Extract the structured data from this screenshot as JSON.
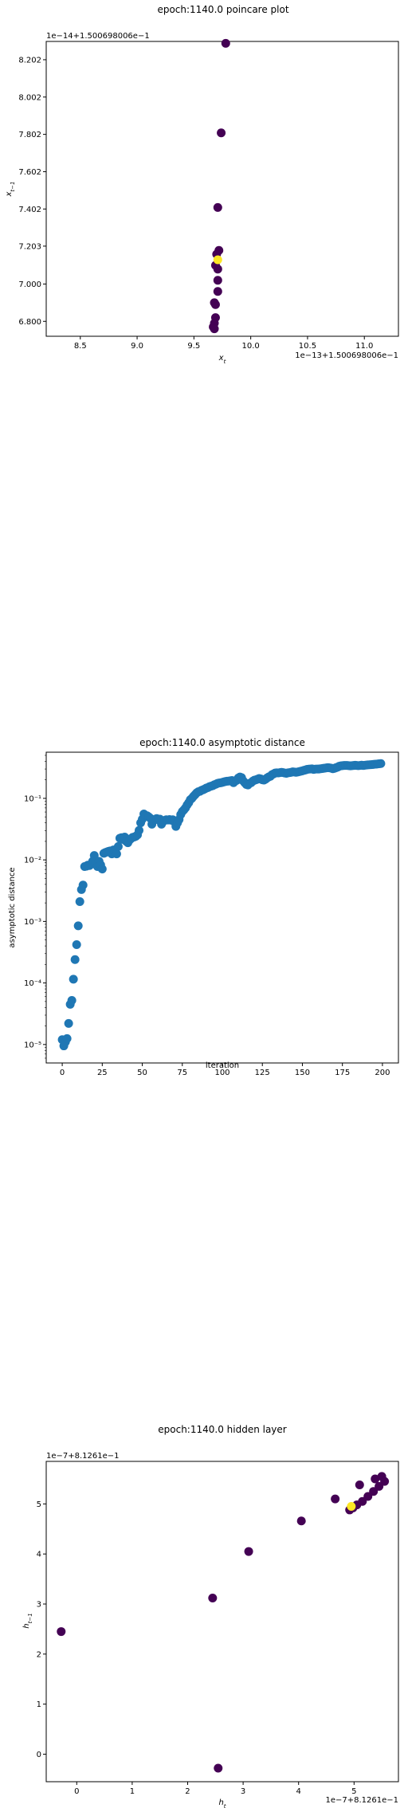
{
  "chart_data": [
    {
      "type": "scatter",
      "title": "epoch:1140.0 poincare plot",
      "xlabel": "x_t",
      "ylabel": "x_{t-1}",
      "x_offset_label": "1e−13+1.500698006e−1",
      "y_offset_label": "1e−14+1.500698006e−1",
      "xlim": [
        8.2,
        11.3
      ],
      "ylim": [
        6.72,
        8.3
      ],
      "xticks": [
        8.5,
        9.0,
        9.5,
        10.0,
        10.5,
        11.0
      ],
      "xtick_labels": [
        "8.5",
        "9.0",
        "9.5",
        "10.0",
        "10.5",
        "11.0"
      ],
      "yticks": [
        6.8,
        7.0,
        7.203,
        7.402,
        7.602,
        7.802,
        8.002,
        8.202
      ],
      "ytick_labels": [
        "6.800",
        "7.000",
        "7.203",
        "7.402",
        "7.602",
        "7.802",
        "8.002",
        "8.202"
      ],
      "colormap": [
        "#440154",
        "#fde725"
      ],
      "highlight_color": "#fde725",
      "base_color": "#440154",
      "points": [
        {
          "x": 9.78,
          "y": 8.29,
          "c": 0
        },
        {
          "x": 9.74,
          "y": 7.81,
          "c": 0
        },
        {
          "x": 9.71,
          "y": 7.41,
          "c": 0
        },
        {
          "x": 9.72,
          "y": 7.18,
          "c": 0
        },
        {
          "x": 9.7,
          "y": 7.16,
          "c": 0
        },
        {
          "x": 9.69,
          "y": 7.1,
          "c": 0
        },
        {
          "x": 9.71,
          "y": 7.08,
          "c": 0
        },
        {
          "x": 9.71,
          "y": 7.02,
          "c": 0
        },
        {
          "x": 9.71,
          "y": 6.96,
          "c": 0
        },
        {
          "x": 9.68,
          "y": 6.9,
          "c": 0
        },
        {
          "x": 9.69,
          "y": 6.89,
          "c": 0
        },
        {
          "x": 9.69,
          "y": 6.82,
          "c": 0
        },
        {
          "x": 9.68,
          "y": 6.79,
          "c": 0
        },
        {
          "x": 9.67,
          "y": 6.77,
          "c": 0
        },
        {
          "x": 9.68,
          "y": 6.76,
          "c": 0
        },
        {
          "x": 9.71,
          "y": 7.13,
          "c": 1
        }
      ]
    },
    {
      "type": "scatter",
      "title": "epoch:1140.0 asymptotic distance",
      "xlabel": "iteration",
      "ylabel": "asymptotic distance",
      "yscale": "log",
      "color": "#1f77b4",
      "xlim": [
        -10,
        210
      ],
      "ylim_exp": [
        -5.3,
        -0.25
      ],
      "xticks": [
        0,
        25,
        50,
        75,
        100,
        125,
        150,
        175,
        200
      ],
      "yticks_exp": [
        -5,
        -4,
        -3,
        -2,
        -1
      ],
      "ytick_labels": [
        "10⁻⁵",
        "10⁻⁴",
        "10⁻³",
        "10⁻²",
        "10⁻¹"
      ],
      "points": [
        [
          0,
          1.2e-05
        ],
        [
          1,
          9.5e-06
        ],
        [
          2,
          1.1e-05
        ],
        [
          3,
          1.25e-05
        ],
        [
          4,
          2.2e-05
        ],
        [
          5,
          4.5e-05
        ],
        [
          6,
          5.2e-05
        ],
        [
          7,
          0.000115
        ],
        [
          8,
          0.00024
        ],
        [
          9,
          0.00042
        ],
        [
          10,
          0.00085
        ],
        [
          11,
          0.0021
        ],
        [
          12,
          0.0033
        ],
        [
          13,
          0.0039
        ],
        [
          14,
          0.0078
        ],
        [
          15,
          0.0079
        ],
        [
          16,
          0.0082
        ],
        [
          17,
          0.0081
        ],
        [
          18,
          0.0085
        ],
        [
          19,
          0.0095
        ],
        [
          20,
          0.0118
        ],
        [
          21,
          0.009
        ],
        [
          22,
          0.0078
        ],
        [
          23,
          0.0095
        ],
        [
          24,
          0.0083
        ],
        [
          25,
          0.0071
        ],
        [
          26,
          0.0128
        ],
        [
          27,
          0.0132
        ],
        [
          28,
          0.0135
        ],
        [
          29,
          0.0138
        ],
        [
          30,
          0.014
        ],
        [
          31,
          0.0125
        ],
        [
          32,
          0.0145
        ],
        [
          33,
          0.0138
        ],
        [
          34,
          0.0125
        ],
        [
          35,
          0.0165
        ],
        [
          36,
          0.0225
        ],
        [
          37,
          0.023
        ],
        [
          38,
          0.0215
        ],
        [
          39,
          0.0235
        ],
        [
          40,
          0.02
        ],
        [
          41,
          0.019
        ],
        [
          42,
          0.021
        ],
        [
          43,
          0.0222
        ],
        [
          44,
          0.0232
        ],
        [
          45,
          0.0236
        ],
        [
          46,
          0.0242
        ],
        [
          47,
          0.0255
        ],
        [
          48,
          0.0302
        ],
        [
          49,
          0.04
        ],
        [
          50,
          0.0458
        ],
        [
          51,
          0.0558
        ],
        [
          52,
          0.052
        ],
        [
          53,
          0.0522
        ],
        [
          54,
          0.05
        ],
        [
          55,
          0.0475
        ],
        [
          56,
          0.038
        ],
        [
          57,
          0.045
        ],
        [
          58,
          0.0455
        ],
        [
          59,
          0.047
        ],
        [
          60,
          0.0448
        ],
        [
          61,
          0.046
        ],
        [
          62,
          0.038
        ],
        [
          63,
          0.042
        ],
        [
          64,
          0.0438
        ],
        [
          65,
          0.045
        ],
        [
          66,
          0.0445
        ],
        [
          67,
          0.0452
        ],
        [
          68,
          0.0442
        ],
        [
          69,
          0.0449
        ],
        [
          70,
          0.0418
        ],
        [
          71,
          0.035
        ],
        [
          72,
          0.04
        ],
        [
          73,
          0.0452
        ],
        [
          74,
          0.0545
        ],
        [
          75,
          0.061
        ],
        [
          76,
          0.065
        ],
        [
          77,
          0.07
        ],
        [
          78,
          0.078
        ],
        [
          79,
          0.085
        ],
        [
          80,
          0.095
        ],
        [
          81,
          0.1
        ],
        [
          82,
          0.108
        ],
        [
          83,
          0.115
        ],
        [
          84,
          0.123
        ],
        [
          85,
          0.128
        ],
        [
          86,
          0.13
        ],
        [
          87,
          0.135
        ],
        [
          88,
          0.138
        ],
        [
          89,
          0.142
        ],
        [
          90,
          0.147
        ],
        [
          91,
          0.15
        ],
        [
          92,
          0.155
        ],
        [
          93,
          0.158
        ],
        [
          94,
          0.161
        ],
        [
          95,
          0.166
        ],
        [
          96,
          0.17
        ],
        [
          97,
          0.175
        ],
        [
          98,
          0.178
        ],
        [
          99,
          0.179
        ],
        [
          100,
          0.182
        ],
        [
          101,
          0.185
        ],
        [
          102,
          0.188
        ],
        [
          103,
          0.19
        ],
        [
          104,
          0.191
        ],
        [
          105,
          0.193
        ],
        [
          106,
          0.195
        ],
        [
          107,
          0.18
        ],
        [
          108,
          0.19
        ],
        [
          109,
          0.197
        ],
        [
          110,
          0.214
        ],
        [
          111,
          0.222
        ],
        [
          112,
          0.217
        ],
        [
          113,
          0.193
        ],
        [
          114,
          0.18
        ],
        [
          115,
          0.168
        ],
        [
          116,
          0.165
        ],
        [
          117,
          0.175
        ],
        [
          118,
          0.18
        ],
        [
          119,
          0.19
        ],
        [
          120,
          0.197
        ],
        [
          121,
          0.2
        ],
        [
          122,
          0.205
        ],
        [
          123,
          0.21
        ],
        [
          124,
          0.207
        ],
        [
          125,
          0.2
        ],
        [
          126,
          0.198
        ],
        [
          127,
          0.205
        ],
        [
          128,
          0.215
        ],
        [
          129,
          0.223
        ],
        [
          130,
          0.228
        ],
        [
          131,
          0.242
        ],
        [
          132,
          0.25
        ],
        [
          133,
          0.258
        ],
        [
          134,
          0.26
        ],
        [
          135,
          0.259
        ],
        [
          136,
          0.262
        ],
        [
          137,
          0.265
        ],
        [
          138,
          0.262
        ],
        [
          139,
          0.258
        ],
        [
          140,
          0.255
        ],
        [
          141,
          0.26
        ],
        [
          142,
          0.262
        ],
        [
          143,
          0.265
        ],
        [
          144,
          0.27
        ],
        [
          145,
          0.268
        ],
        [
          146,
          0.265
        ],
        [
          147,
          0.268
        ],
        [
          148,
          0.272
        ],
        [
          149,
          0.276
        ],
        [
          150,
          0.28
        ],
        [
          151,
          0.285
        ],
        [
          152,
          0.29
        ],
        [
          153,
          0.296
        ],
        [
          154,
          0.298
        ],
        [
          155,
          0.3
        ],
        [
          156,
          0.302
        ],
        [
          157,
          0.295
        ],
        [
          158,
          0.298
        ],
        [
          159,
          0.3
        ],
        [
          160,
          0.299
        ],
        [
          161,
          0.302
        ],
        [
          162,
          0.304
        ],
        [
          163,
          0.307
        ],
        [
          164,
          0.31
        ],
        [
          165,
          0.313
        ],
        [
          166,
          0.315
        ],
        [
          167,
          0.313
        ],
        [
          168,
          0.31
        ],
        [
          169,
          0.303
        ],
        [
          170,
          0.308
        ],
        [
          171,
          0.315
        ],
        [
          172,
          0.322
        ],
        [
          173,
          0.333
        ],
        [
          174,
          0.338
        ],
        [
          175,
          0.34
        ],
        [
          176,
          0.342
        ],
        [
          177,
          0.343
        ],
        [
          178,
          0.342
        ],
        [
          179,
          0.34
        ],
        [
          180,
          0.338
        ],
        [
          181,
          0.34
        ],
        [
          182,
          0.342
        ],
        [
          183,
          0.345
        ],
        [
          184,
          0.342
        ],
        [
          185,
          0.34
        ],
        [
          186,
          0.343
        ],
        [
          187,
          0.346
        ],
        [
          188,
          0.342
        ],
        [
          189,
          0.345
        ],
        [
          190,
          0.348
        ],
        [
          191,
          0.35
        ],
        [
          192,
          0.352
        ],
        [
          193,
          0.353
        ],
        [
          194,
          0.355
        ],
        [
          195,
          0.358
        ],
        [
          196,
          0.36
        ],
        [
          197,
          0.362
        ],
        [
          198,
          0.365
        ],
        [
          199,
          0.368
        ]
      ]
    },
    {
      "type": "scatter",
      "title": "epoch:1140.0 hidden layer",
      "xlabel": "h_t",
      "ylabel": "h_{t-1}",
      "x_offset_label": "1e−7+8.1261e−1",
      "y_offset_label": "1e−7+8.1261e−1",
      "xlim": [
        -0.55,
        5.8
      ],
      "ylim": [
        -0.55,
        5.85
      ],
      "xticks": [
        0,
        1,
        2,
        3,
        4,
        5
      ],
      "yticks": [
        0,
        1,
        2,
        3,
        4,
        5
      ],
      "base_color": "#440154",
      "highlight_color": "#fde725",
      "points": [
        {
          "x": -0.28,
          "y": 2.45,
          "c": 0
        },
        {
          "x": 2.55,
          "y": -0.28,
          "c": 0
        },
        {
          "x": 2.45,
          "y": 3.12,
          "c": 0
        },
        {
          "x": 3.1,
          "y": 4.05,
          "c": 0
        },
        {
          "x": 4.05,
          "y": 4.66,
          "c": 0
        },
        {
          "x": 4.66,
          "y": 5.1,
          "c": 0
        },
        {
          "x": 5.1,
          "y": 5.38,
          "c": 0
        },
        {
          "x": 5.38,
          "y": 5.5,
          "c": 0
        },
        {
          "x": 5.5,
          "y": 5.55,
          "c": 0
        },
        {
          "x": 5.55,
          "y": 5.45,
          "c": 0
        },
        {
          "x": 5.45,
          "y": 5.35,
          "c": 0
        },
        {
          "x": 5.35,
          "y": 5.25,
          "c": 0
        },
        {
          "x": 5.25,
          "y": 5.15,
          "c": 0
        },
        {
          "x": 5.15,
          "y": 5.05,
          "c": 0
        },
        {
          "x": 5.05,
          "y": 4.98,
          "c": 0
        },
        {
          "x": 4.98,
          "y": 4.92,
          "c": 0
        },
        {
          "x": 4.92,
          "y": 4.88,
          "c": 0
        },
        {
          "x": 4.95,
          "y": 4.95,
          "c": 1
        }
      ]
    }
  ]
}
